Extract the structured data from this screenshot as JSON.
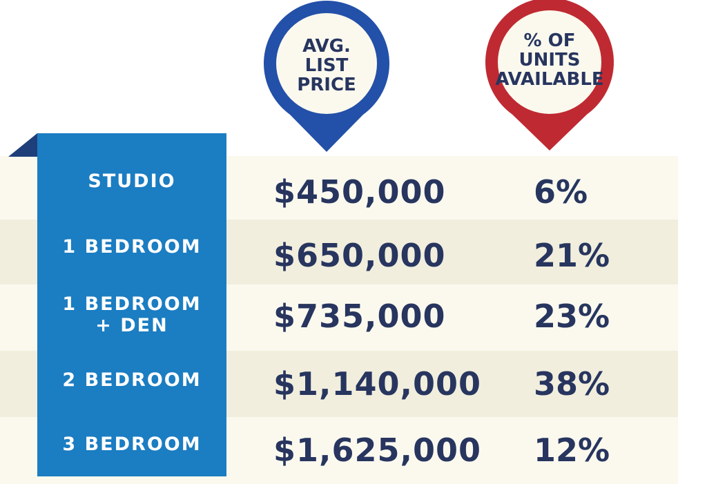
{
  "chart_data": {
    "type": "table",
    "columns": [
      {
        "key": "price",
        "header": "AVG. LIST PRICE",
        "header_lines": [
          "AVG.",
          "LIST",
          "PRICE"
        ],
        "pin_color": "#2350a8"
      },
      {
        "key": "pct",
        "header": "% OF UNITS AVAILABLE",
        "header_lines": [
          "% OF",
          "UNITS",
          "AVAILABLE"
        ],
        "pin_color": "#bf2a32"
      }
    ],
    "rows": [
      {
        "label_lines": [
          "STUDIO"
        ],
        "price": "$450,000",
        "pct": "6%",
        "price_value": 450000,
        "pct_value": 6
      },
      {
        "label_lines": [
          "1 BEDROOM"
        ],
        "price": "$650,000",
        "pct": "21%",
        "price_value": 650000,
        "pct_value": 21
      },
      {
        "label_lines": [
          "1 BEDROOM",
          "+ DEN"
        ],
        "price": "$735,000",
        "pct": "23%",
        "price_value": 735000,
        "pct_value": 23
      },
      {
        "label_lines": [
          "2 BEDROOM"
        ],
        "price": "$1,140,000",
        "pct": "38%",
        "price_value": 1140000,
        "pct_value": 38
      },
      {
        "label_lines": [
          "3 BEDROOM"
        ],
        "price": "$1,625,000",
        "pct": "12%",
        "price_value": 1625000,
        "pct_value": 12
      }
    ]
  },
  "colors": {
    "ribbon": "#1b7dc2",
    "ribbon_fold": "#1f3f7a",
    "band_light": "#fbf9ee",
    "band_dark": "#f1eedd",
    "value_text": "#27355f",
    "pin_inner": "#fbf9ee"
  }
}
